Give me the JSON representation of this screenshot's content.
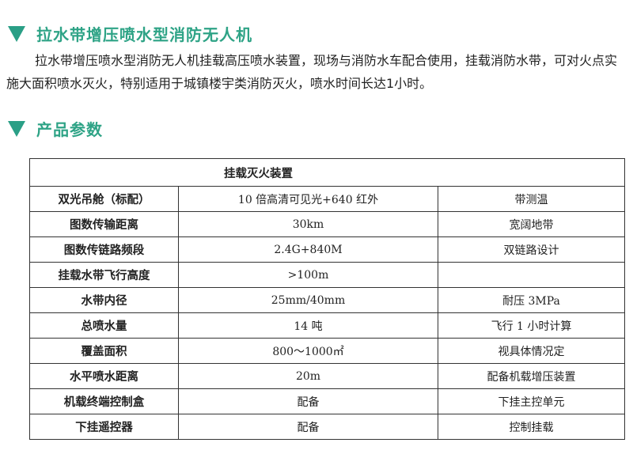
{
  "title": "拉水带增压喷水型消防无人机",
  "description": "拉水带增压喷水型消防无人机挂载高压喷水装置，现场与消防水车配合使用，挂载消防水带，可对火点实施大面积喷水灭火，特别适用于城镇楼宇类消防灭火，喷水时间长达1小时。",
  "section2": "产品参数",
  "accent_color": "#2ea386",
  "table": {
    "header": "挂载灭火装置",
    "rows": [
      {
        "k": "双光吊舱（标配）",
        "v": "10 倍高清可见光+640 红外",
        "n": "带测温"
      },
      {
        "k": "图数传输距离",
        "v": "30km",
        "n": "宽阔地带"
      },
      {
        "k": "图数传链路频段",
        "v": "2.4G+840M",
        "n": "双链路设计"
      },
      {
        "k": "挂载水带飞行高度",
        "v": ">100m",
        "n": ""
      },
      {
        "k": "水带内径",
        "v": "25mm/40mm",
        "n": "耐压 3MPa"
      },
      {
        "k": "总喷水量",
        "v": "14 吨",
        "n": "飞行 1 小时计算"
      },
      {
        "k": "覆盖面积",
        "v": "800～1000㎡",
        "n": "视具体情况定"
      },
      {
        "k": "水平喷水距离",
        "v": "20m",
        "n": "配备机载增压装置"
      },
      {
        "k": "机载终端控制盒",
        "v": "配备",
        "n": "下挂主控单元"
      },
      {
        "k": "下挂遥控器",
        "v": "配备",
        "n": "控制挂载"
      }
    ]
  }
}
